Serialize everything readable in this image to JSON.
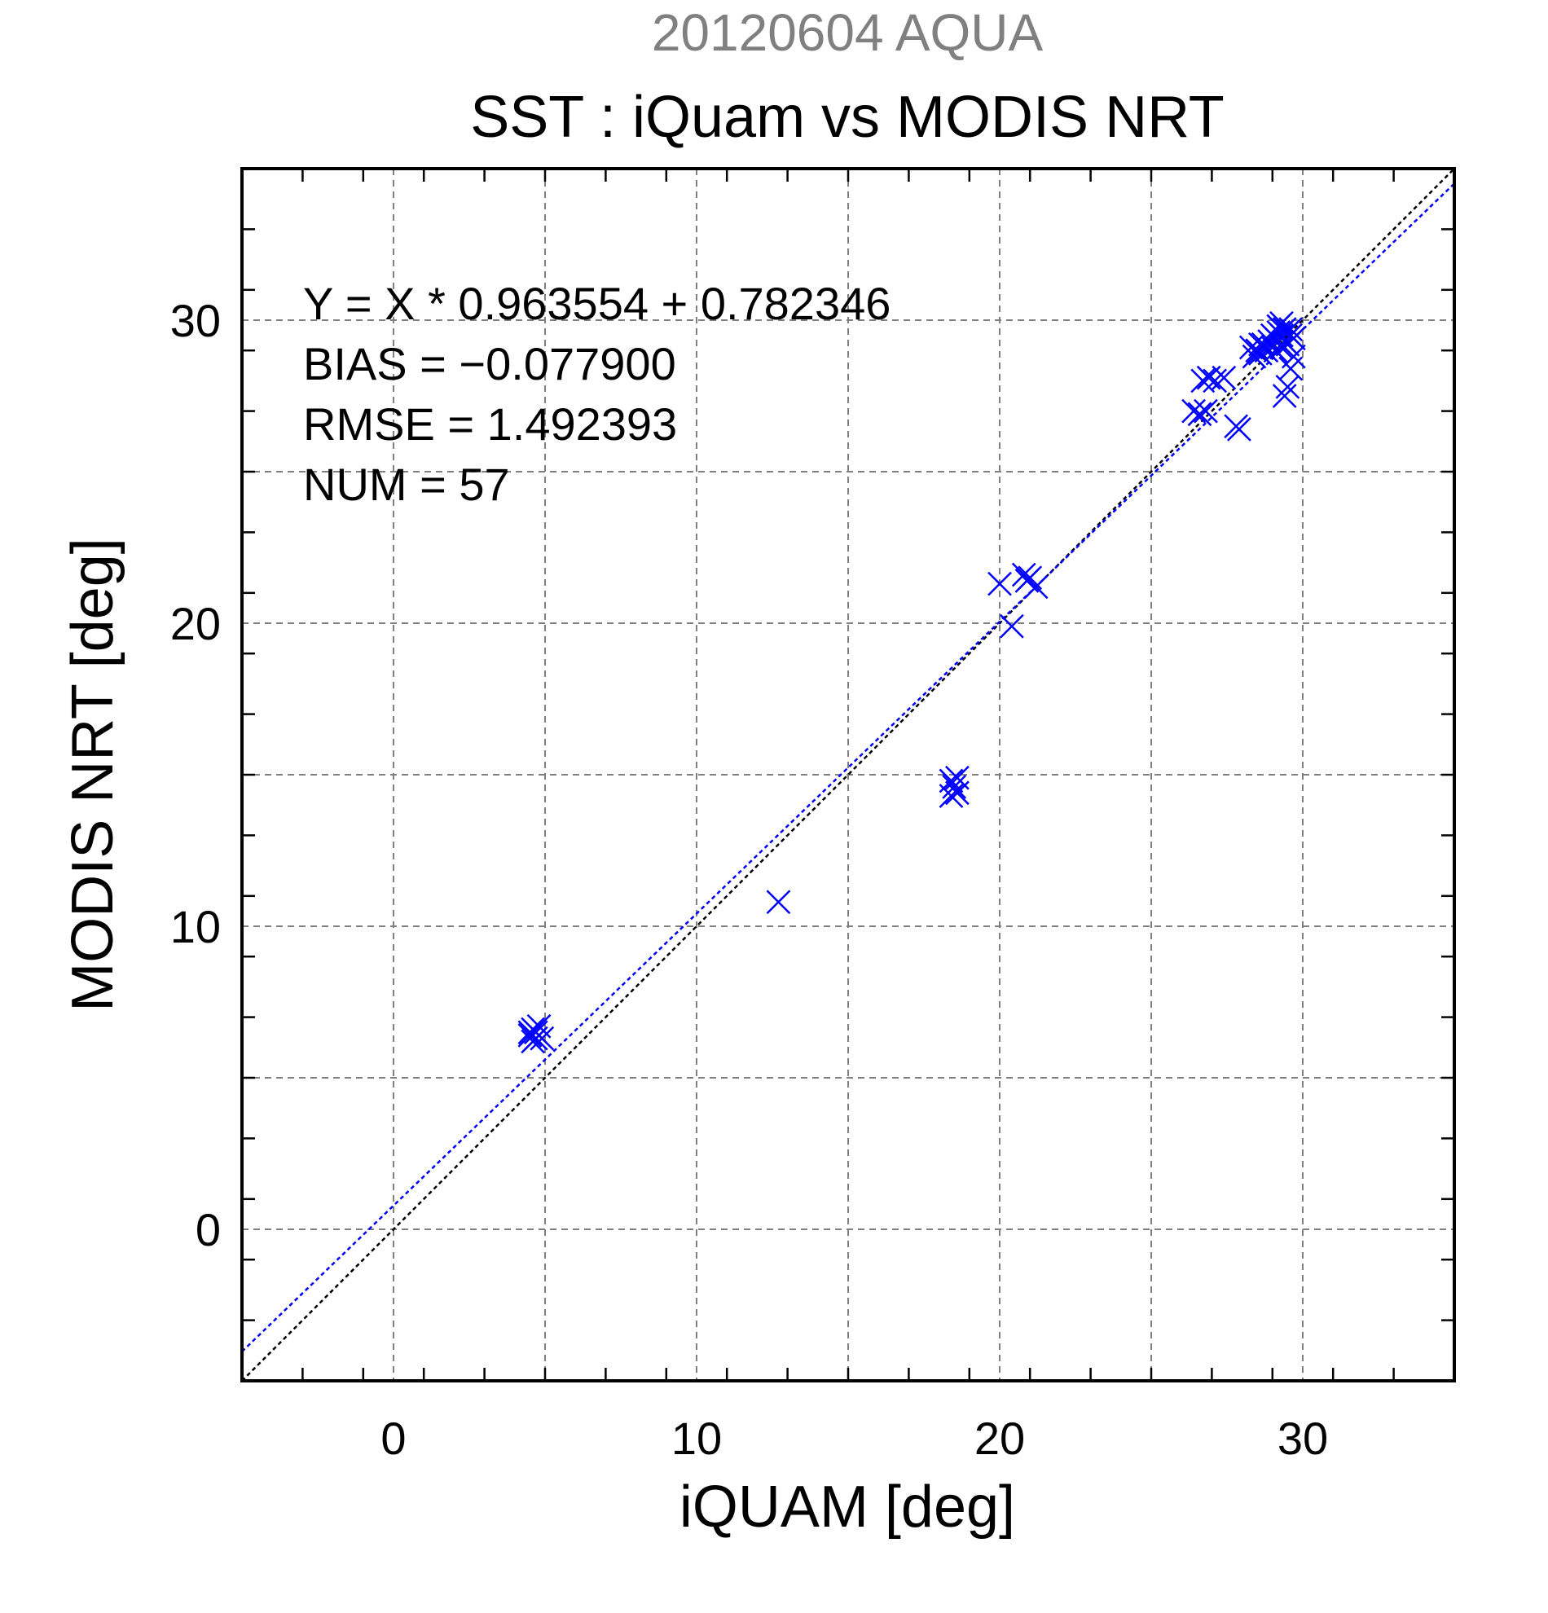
{
  "chart_data": {
    "type": "scatter",
    "header": "20120604 AQUA",
    "title": "SST : iQuam vs MODIS NRT",
    "xlabel": "iQUAM [deg]",
    "ylabel": "MODIS NRT [deg]",
    "xlim": [
      -5,
      35
    ],
    "ylim": [
      -5,
      35
    ],
    "major_ticks": [
      0,
      10,
      20,
      30
    ],
    "tick_labels": [
      "0",
      "10",
      "20",
      "30"
    ],
    "grid_ticks": [
      0,
      5,
      10,
      15,
      20,
      25,
      30
    ],
    "grid": true,
    "stats": {
      "equation": "Y = X * 0.963554 + 0.782346",
      "bias": "BIAS = −0.077900",
      "rmse": "RMSE = 1.492393",
      "num": "NUM = 57"
    },
    "fit": {
      "slope": 0.963554,
      "intercept": 0.782346
    },
    "colors": {
      "points": "#0000ff",
      "fit_line": "#0000ff",
      "identity_line": "#000000",
      "header": "#808080",
      "grid": "#808080"
    },
    "points": [
      [
        4.5,
        6.4
      ],
      [
        4.6,
        6.2
      ],
      [
        4.7,
        6.5
      ],
      [
        4.8,
        6.7
      ],
      [
        4.6,
        6.6
      ],
      [
        4.9,
        6.3
      ],
      [
        4.5,
        6.5
      ],
      [
        4.7,
        6.3
      ],
      [
        12.7,
        10.8
      ],
      [
        18.4,
        14.3
      ],
      [
        18.5,
        14.6
      ],
      [
        18.6,
        14.9
      ],
      [
        18.4,
        14.8
      ],
      [
        18.6,
        14.4
      ],
      [
        20.0,
        21.3
      ],
      [
        20.4,
        19.9
      ],
      [
        20.8,
        21.6
      ],
      [
        21.0,
        21.5
      ],
      [
        21.2,
        21.2
      ],
      [
        20.9,
        21.4
      ],
      [
        26.4,
        27.0
      ],
      [
        26.6,
        26.9
      ],
      [
        26.8,
        27.0
      ],
      [
        26.7,
        28.0
      ],
      [
        26.9,
        28.1
      ],
      [
        27.1,
        28.0
      ],
      [
        27.4,
        28.1
      ],
      [
        27.8,
        26.5
      ],
      [
        27.9,
        26.4
      ],
      [
        28.3,
        29.1
      ],
      [
        28.4,
        28.8
      ],
      [
        28.5,
        29.0
      ],
      [
        28.6,
        28.9
      ],
      [
        28.7,
        29.2
      ],
      [
        28.8,
        29.0
      ],
      [
        28.9,
        29.3
      ],
      [
        29.0,
        29.1
      ],
      [
        29.1,
        29.4
      ],
      [
        29.2,
        29.6
      ],
      [
        29.2,
        29.8
      ],
      [
        29.3,
        29.5
      ],
      [
        29.3,
        29.9
      ],
      [
        29.4,
        29.7
      ],
      [
        29.4,
        29.3
      ],
      [
        29.5,
        29.6
      ],
      [
        29.5,
        29.2
      ],
      [
        29.6,
        29.5
      ],
      [
        29.6,
        29.7
      ],
      [
        29.7,
        29.4
      ],
      [
        29.4,
        27.5
      ],
      [
        29.5,
        27.8
      ],
      [
        29.6,
        28.4
      ],
      [
        29.7,
        28.8
      ],
      [
        29.0,
        29.5
      ],
      [
        29.3,
        29.1
      ],
      [
        28.6,
        29.2
      ],
      [
        29.1,
        29.0
      ]
    ]
  }
}
